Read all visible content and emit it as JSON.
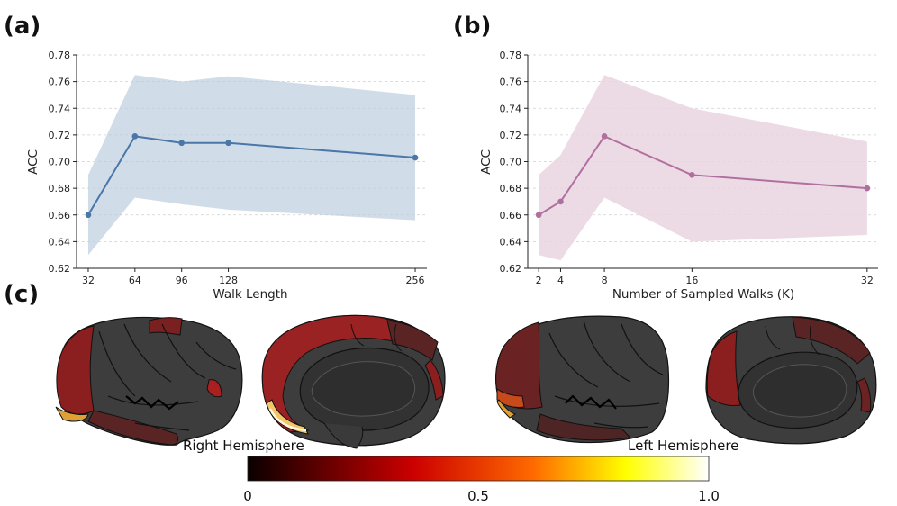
{
  "panel_labels": {
    "a": "(a)",
    "b": "(b)",
    "c": "(c)"
  },
  "chart_data": [
    {
      "type": "line",
      "panel": "a",
      "x": [
        32,
        64,
        96,
        128,
        256
      ],
      "xticks": [
        "32",
        "64",
        "96",
        "128",
        "256"
      ],
      "series": [
        {
          "name": "ACC",
          "values": [
            0.66,
            0.719,
            0.714,
            0.714,
            0.703
          ],
          "upper": [
            0.69,
            0.765,
            0.76,
            0.764,
            0.75
          ],
          "lower": [
            0.63,
            0.673,
            0.668,
            0.664,
            0.656
          ]
        }
      ],
      "xlim": [
        24,
        264
      ],
      "ylim": [
        0.62,
        0.78
      ],
      "yticks": [
        "0.62",
        "0.64",
        "0.66",
        "0.68",
        "0.70",
        "0.72",
        "0.74",
        "0.76",
        "0.78"
      ],
      "xlabel": "Walk Length",
      "ylabel": "ACC",
      "grid": "y-dashed",
      "line_color": "#4a76a8",
      "band_color": "#b7c9dc"
    },
    {
      "type": "line",
      "panel": "b",
      "x": [
        2,
        4,
        8,
        16,
        32
      ],
      "xticks": [
        "2",
        "4",
        "8",
        "16",
        "32"
      ],
      "series": [
        {
          "name": "ACC",
          "values": [
            0.66,
            0.67,
            0.719,
            0.69,
            0.68
          ],
          "upper": [
            0.69,
            0.705,
            0.765,
            0.74,
            0.715
          ],
          "lower": [
            0.63,
            0.626,
            0.673,
            0.64,
            0.645
          ]
        }
      ],
      "xlim": [
        1,
        33
      ],
      "ylim": [
        0.62,
        0.78
      ],
      "yticks": [
        "0.62",
        "0.64",
        "0.66",
        "0.68",
        "0.70",
        "0.72",
        "0.74",
        "0.76",
        "0.78"
      ],
      "xlabel": "Number of Sampled Walks (K)",
      "ylabel": "ACC",
      "grid": "y-dashed",
      "line_color": "#b0709f",
      "band_color": "#e9d3e1"
    }
  ],
  "brain": {
    "right_label": "Right Hemisphere",
    "left_label": "Left Hemisphere",
    "colorbar_ticks": [
      "0",
      "0.5",
      "1.0"
    ],
    "colormap": "hot"
  }
}
